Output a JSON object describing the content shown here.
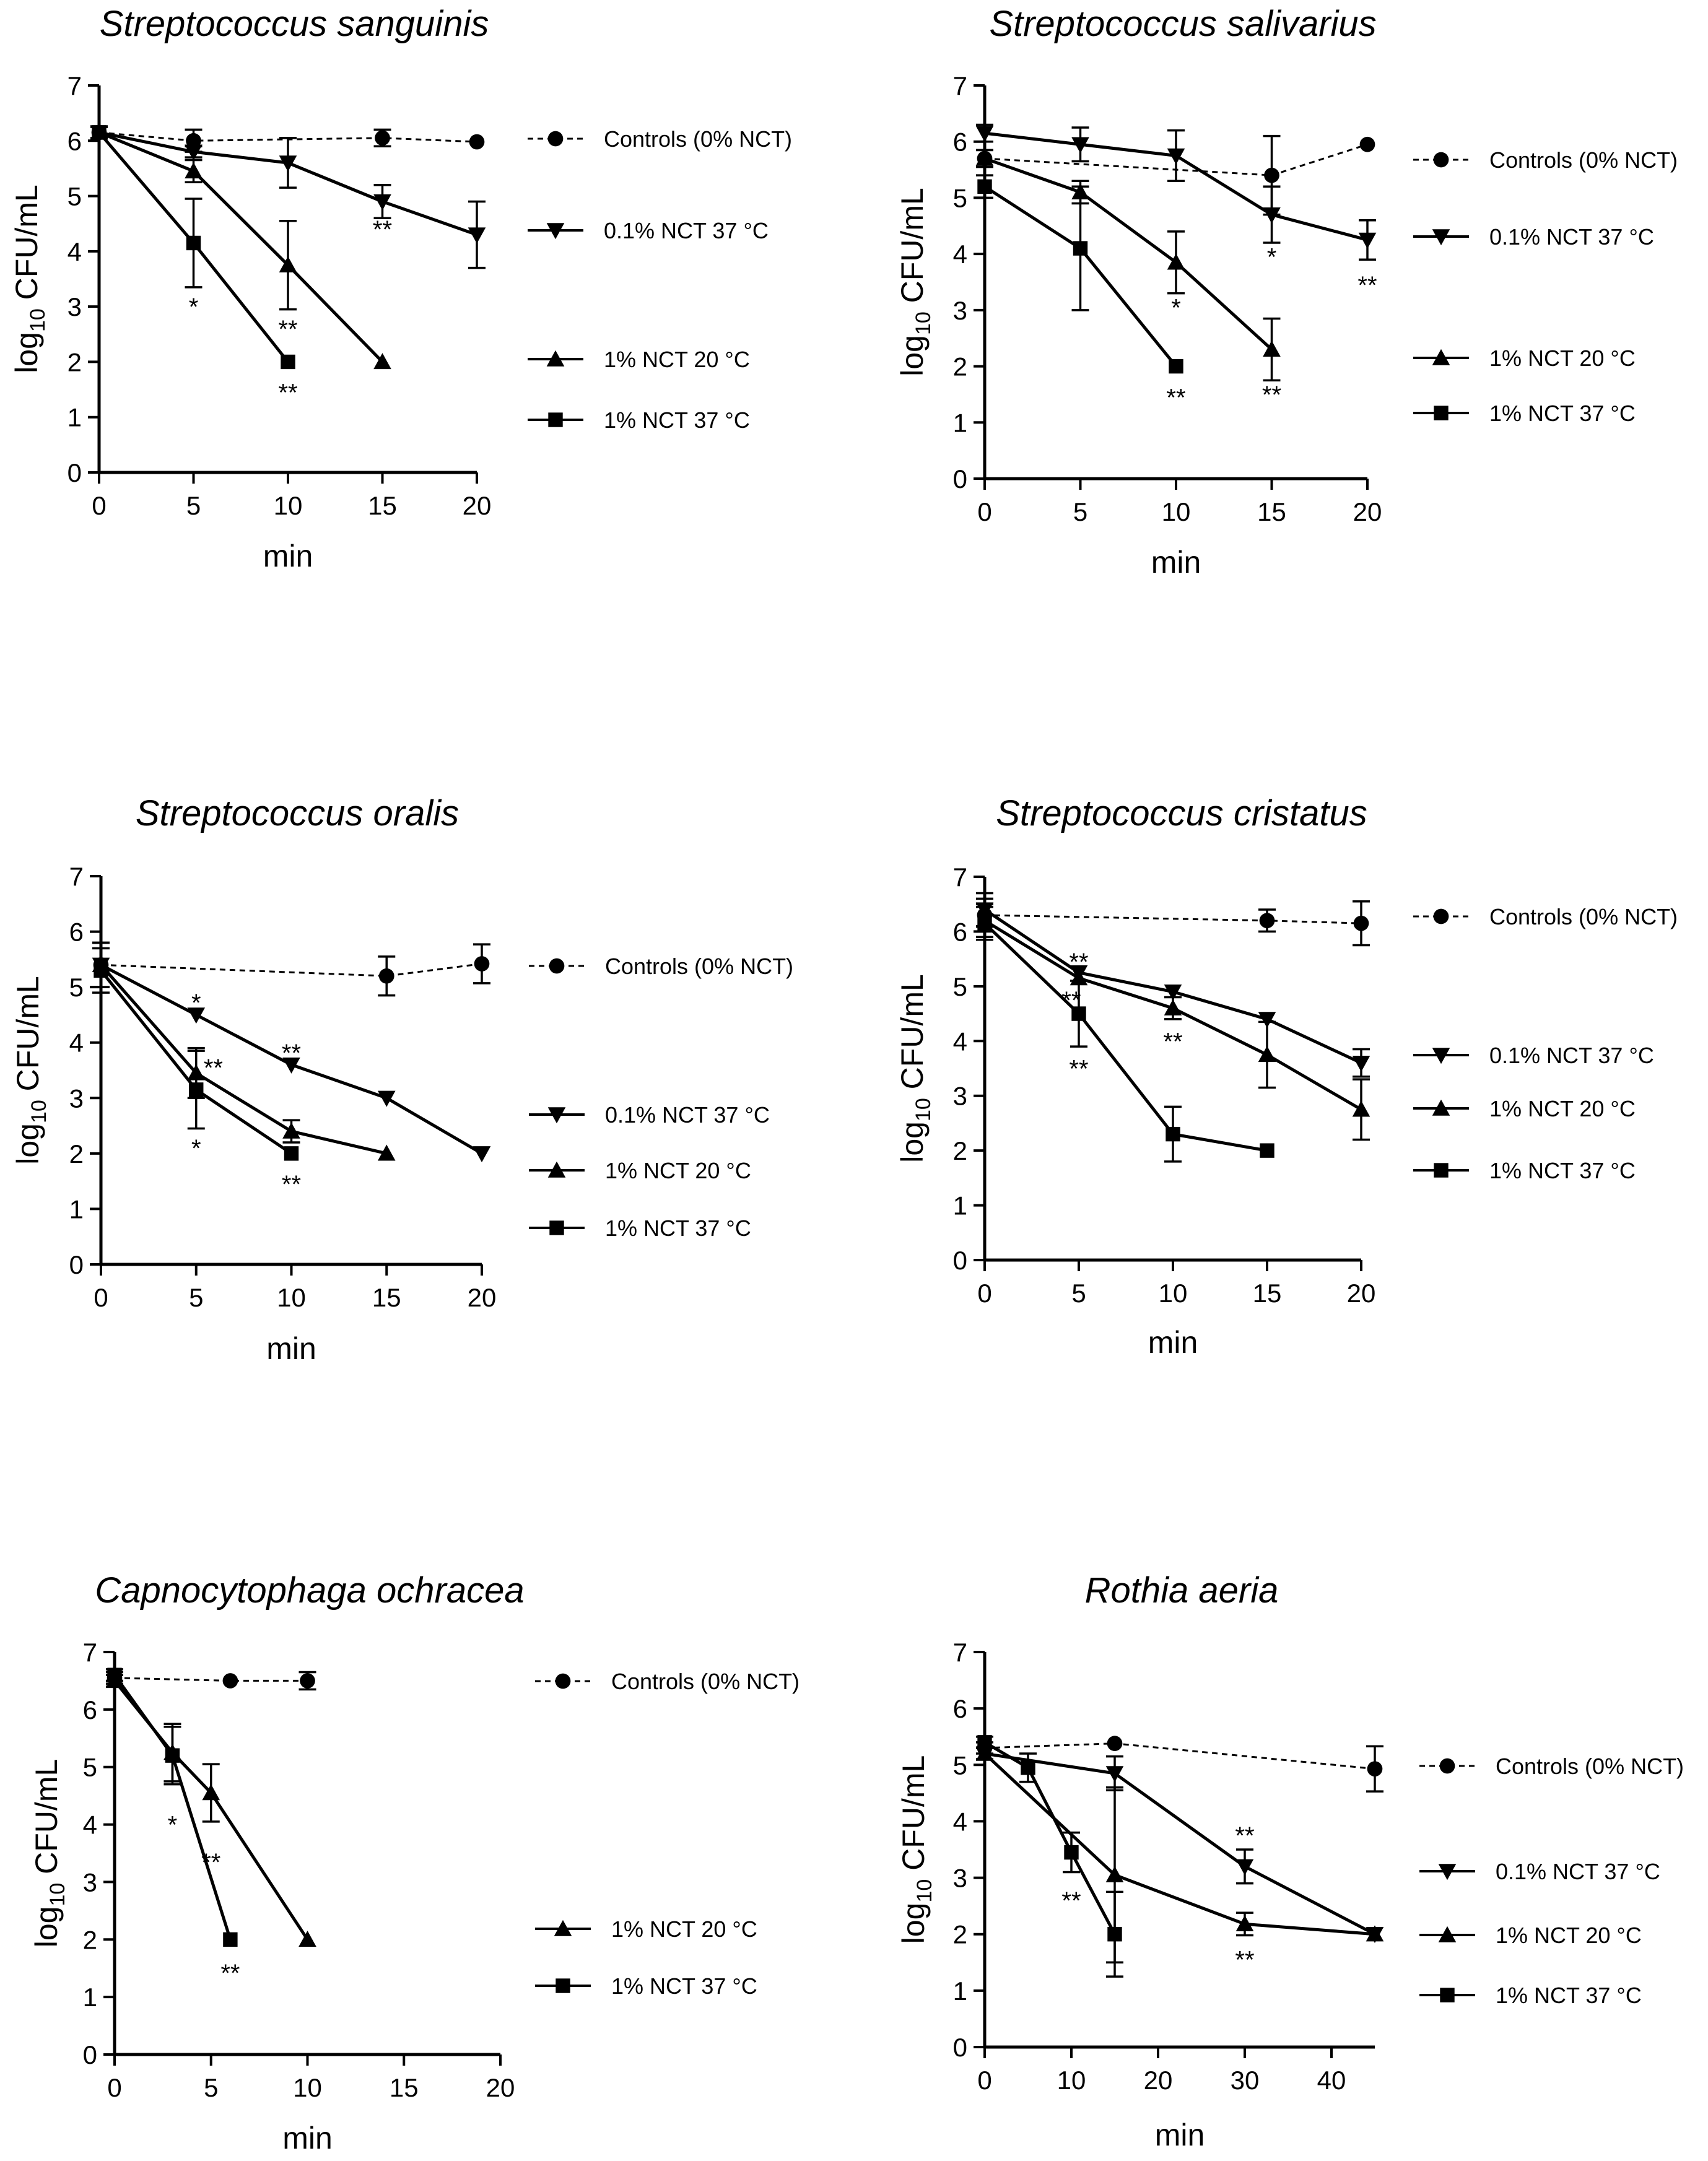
{
  "chart_data": [
    {
      "type": "line",
      "title": "Streptococcus sanguinis",
      "xlabel": "min",
      "ylabel": "log10 CFU/mL",
      "xlim": [
        0,
        20
      ],
      "ylim": [
        0,
        7
      ],
      "xticks": [
        0,
        5,
        10,
        15,
        20
      ],
      "yticks": [
        0,
        1,
        2,
        3,
        4,
        5,
        6,
        7
      ],
      "legend_position": "right",
      "series": [
        {
          "name": "Controls (0% NCT)",
          "marker": "circle",
          "line": "dashed",
          "x": [
            0,
            5,
            15,
            20
          ],
          "y": [
            6.15,
            6.0,
            6.05,
            5.98
          ],
          "err": [
            0.1,
            0.2,
            0.15,
            0
          ]
        },
        {
          "name": "0.1% NCT 37 °C",
          "marker": "triangle-down",
          "line": "solid",
          "x": [
            0,
            5,
            10,
            15,
            20
          ],
          "y": [
            6.15,
            5.8,
            5.6,
            4.9,
            4.3
          ],
          "err": [
            0.1,
            0.1,
            0.45,
            0.3,
            0.6
          ]
        },
        {
          "name": "1% NCT 20 °C",
          "marker": "triangle-up",
          "line": "solid",
          "x": [
            0,
            5,
            10,
            15
          ],
          "y": [
            6.15,
            5.45,
            3.75,
            2.0
          ],
          "err": [
            0.1,
            0.2,
            0.8,
            0
          ]
        },
        {
          "name": "1% NCT 37 °C",
          "marker": "square",
          "line": "solid",
          "x": [
            0,
            5,
            10
          ],
          "y": [
            6.15,
            4.15,
            2.0
          ],
          "err": [
            0.1,
            0.8,
            0
          ]
        }
      ],
      "annotations": [
        {
          "x": 5,
          "y": 3.0,
          "text": "*"
        },
        {
          "x": 10,
          "y": 2.6,
          "text": "**"
        },
        {
          "x": 10,
          "y": 1.45,
          "text": "**"
        },
        {
          "x": 15,
          "y": 4.4,
          "text": "**"
        }
      ]
    },
    {
      "type": "line",
      "title": "Streptococcus salivarius",
      "xlabel": "min",
      "ylabel": "log10 CFU/mL",
      "xlim": [
        0,
        20
      ],
      "ylim": [
        0,
        7
      ],
      "xticks": [
        0,
        5,
        10,
        15,
        20
      ],
      "yticks": [
        0,
        1,
        2,
        3,
        4,
        5,
        6,
        7
      ],
      "legend_position": "right",
      "series": [
        {
          "name": "Controls (0% NCT)",
          "marker": "circle",
          "line": "dashed",
          "x": [
            0,
            15,
            20
          ],
          "y": [
            5.7,
            5.4,
            5.95
          ],
          "err": [
            0.15,
            0.7,
            0
          ]
        },
        {
          "name": "0.1% NCT 37 °C",
          "marker": "triangle-down",
          "line": "solid",
          "x": [
            0,
            5,
            10,
            15,
            20
          ],
          "y": [
            6.15,
            5.95,
            5.75,
            4.7,
            4.25
          ],
          "err": [
            0.15,
            0.3,
            0.45,
            0.5,
            0.35
          ]
        },
        {
          "name": "1% NCT 20 °C",
          "marker": "triangle-up",
          "line": "solid",
          "x": [
            0,
            5,
            10,
            15
          ],
          "y": [
            5.7,
            5.1,
            3.85,
            2.3
          ],
          "err": [
            0.15,
            0.2,
            0.55,
            0.55
          ]
        },
        {
          "name": "1% NCT 37 °C",
          "marker": "square",
          "line": "solid",
          "x": [
            0,
            5,
            10
          ],
          "y": [
            5.2,
            4.1,
            2.0
          ],
          "err": [
            0.2,
            1.1,
            0
          ]
        }
      ],
      "annotations": [
        {
          "x": 10,
          "y": 3.05,
          "text": "*"
        },
        {
          "x": 15,
          "y": 3.95,
          "text": "*"
        },
        {
          "x": 20,
          "y": 3.45,
          "text": "**"
        },
        {
          "x": 10,
          "y": 1.45,
          "text": "**"
        },
        {
          "x": 15,
          "y": 1.5,
          "text": "**"
        }
      ]
    },
    {
      "type": "line",
      "title": "Streptococcus oralis",
      "xlabel": "min",
      "ylabel": "log10 CFU/mL",
      "xlim": [
        0,
        20
      ],
      "ylim": [
        0,
        7
      ],
      "xticks": [
        0,
        5,
        10,
        15,
        20
      ],
      "yticks": [
        0,
        1,
        2,
        3,
        4,
        5,
        6,
        7
      ],
      "legend_position": "right",
      "series": [
        {
          "name": "Controls (0% NCT)",
          "marker": "circle",
          "line": "dashed",
          "x": [
            0,
            15,
            20
          ],
          "y": [
            5.4,
            5.2,
            5.42
          ],
          "err": [
            0.4,
            0.35,
            0.35
          ]
        },
        {
          "name": "0.1% NCT 37 °C",
          "marker": "triangle-down",
          "line": "solid",
          "x": [
            0,
            5,
            10,
            15,
            20
          ],
          "y": [
            5.4,
            4.5,
            3.6,
            3.0,
            2.0
          ],
          "err": [
            0.4,
            0,
            0,
            0,
            0
          ]
        },
        {
          "name": "1% NCT 20 °C",
          "marker": "triangle-up",
          "line": "solid",
          "x": [
            0,
            5,
            10,
            15
          ],
          "y": [
            5.4,
            3.45,
            2.4,
            2.0
          ],
          "err": [
            0.4,
            0.45,
            0.2,
            0
          ]
        },
        {
          "name": "1% NCT 37 °C",
          "marker": "square",
          "line": "solid",
          "x": [
            0,
            5,
            10
          ],
          "y": [
            5.3,
            3.15,
            2.0
          ],
          "err": [
            0.4,
            0.7,
            0
          ]
        }
      ],
      "annotations": [
        {
          "x": 5,
          "y": 4.72,
          "text": "*"
        },
        {
          "x": 5.9,
          "y": 3.55,
          "text": "**"
        },
        {
          "x": 10,
          "y": 3.82,
          "text": "**"
        },
        {
          "x": 5,
          "y": 2.1,
          "text": "*"
        },
        {
          "x": 10,
          "y": 1.45,
          "text": "**"
        }
      ]
    },
    {
      "type": "line",
      "title": "Streptococcus cristatus",
      "xlabel": "min",
      "ylabel": "log10 CFU/mL",
      "xlim": [
        0,
        20
      ],
      "ylim": [
        0,
        7
      ],
      "xticks": [
        0,
        5,
        10,
        15,
        20
      ],
      "yticks": [
        0,
        1,
        2,
        3,
        4,
        5,
        6,
        7
      ],
      "legend_position": "right",
      "series": [
        {
          "name": "Controls (0% NCT)",
          "marker": "circle",
          "line": "dashed",
          "x": [
            0,
            15,
            20
          ],
          "y": [
            6.3,
            6.2,
            6.15
          ],
          "err": [
            0.3,
            0.2,
            0.4
          ]
        },
        {
          "name": "0.1% NCT 37 °C",
          "marker": "triangle-down",
          "line": "solid",
          "x": [
            0,
            5,
            10,
            15,
            20
          ],
          "y": [
            6.4,
            5.25,
            4.9,
            4.4,
            3.6
          ],
          "err": [
            0.3,
            0,
            0,
            0,
            0.25
          ]
        },
        {
          "name": "1% NCT 20 °C",
          "marker": "triangle-up",
          "line": "solid",
          "x": [
            0,
            5,
            10,
            15,
            20
          ],
          "y": [
            6.2,
            5.15,
            4.6,
            3.75,
            2.75
          ],
          "err": [
            0.3,
            0,
            0.2,
            0.6,
            0.55
          ]
        },
        {
          "name": "1% NCT 37 °C",
          "marker": "square",
          "line": "solid",
          "x": [
            0,
            5,
            10,
            15
          ],
          "y": [
            6.15,
            4.5,
            2.3,
            2.0
          ],
          "err": [
            0.3,
            0.6,
            0.5,
            0
          ]
        }
      ],
      "annotations": [
        {
          "x": 5,
          "y": 5.45,
          "text": "**"
        },
        {
          "x": 4.6,
          "y": 4.75,
          "text": "**"
        },
        {
          "x": 10,
          "y": 4.0,
          "text": "**"
        },
        {
          "x": 5,
          "y": 3.5,
          "text": "**"
        }
      ]
    },
    {
      "type": "line",
      "title": "Capnocytophaga ochracea",
      "xlabel": "min",
      "ylabel": "log10 CFU/mL",
      "xlim": [
        0,
        20
      ],
      "ylim": [
        0,
        7
      ],
      "xticks": [
        0,
        5,
        10,
        15,
        20
      ],
      "yticks": [
        0,
        1,
        2,
        3,
        4,
        5,
        6,
        7
      ],
      "legend_position": "right",
      "series": [
        {
          "name": "Controls (0% NCT)",
          "marker": "circle",
          "line": "dashed",
          "x": [
            0,
            6,
            10
          ],
          "y": [
            6.55,
            6.5,
            6.5
          ],
          "err": [
            0.1,
            0,
            0.15
          ]
        },
        {
          "name": "1% NCT 20 °C",
          "marker": "triangle-up",
          "line": "solid",
          "x": [
            0,
            3,
            5,
            10
          ],
          "y": [
            6.5,
            5.25,
            4.55,
            2.0
          ],
          "err": [
            0.1,
            0.5,
            0.5,
            0
          ]
        },
        {
          "name": "1% NCT 37 °C",
          "marker": "square",
          "line": "solid",
          "x": [
            0,
            3,
            6
          ],
          "y": [
            6.6,
            5.2,
            2.0
          ],
          "err": [
            0.1,
            0.5,
            0
          ]
        }
      ],
      "annotations": [
        {
          "x": 3,
          "y": 4.0,
          "text": "*"
        },
        {
          "x": 5,
          "y": 3.35,
          "text": "**"
        },
        {
          "x": 6,
          "y": 1.42,
          "text": "**"
        }
      ]
    },
    {
      "type": "line",
      "title": "Rothia aeria",
      "xlabel": "min",
      "ylabel": "log10 CFU/mL",
      "xlim": [
        0,
        45
      ],
      "ylim": [
        0,
        7
      ],
      "xticks": [
        0,
        10,
        20,
        30,
        40
      ],
      "yticks": [
        0,
        1,
        2,
        3,
        4,
        5,
        6,
        7
      ],
      "legend_position": "right",
      "series": [
        {
          "name": "Controls (0% NCT)",
          "marker": "circle",
          "line": "dashed",
          "x": [
            0,
            15,
            45
          ],
          "y": [
            5.3,
            5.38,
            4.93
          ],
          "err": [
            0.1,
            0,
            0.4
          ]
        },
        {
          "name": "0.1% NCT 37 °C",
          "marker": "triangle-down",
          "line": "solid",
          "x": [
            0,
            15,
            30,
            45
          ],
          "y": [
            5.2,
            4.85,
            3.2,
            2.0
          ],
          "err": [
            0.1,
            0.3,
            0.3,
            0
          ]
        },
        {
          "name": "1% NCT 20 °C",
          "marker": "triangle-up",
          "line": "solid",
          "x": [
            0,
            15,
            30,
            45
          ],
          "y": [
            5.2,
            3.05,
            2.18,
            2.0
          ],
          "err": [
            0.1,
            1.55,
            0.2,
            0
          ]
        },
        {
          "name": "1% NCT 37 °C",
          "marker": "square",
          "line": "solid",
          "x": [
            0,
            5,
            10,
            15
          ],
          "y": [
            5.4,
            4.95,
            3.45,
            2.0
          ],
          "err": [
            0.1,
            0.25,
            0.35,
            0.75
          ]
        }
      ],
      "annotations": [
        {
          "x": 30,
          "y": 3.75,
          "text": "**"
        },
        {
          "x": 10,
          "y": 2.6,
          "text": "**"
        },
        {
          "x": 30,
          "y": 1.55,
          "text": "**"
        }
      ]
    }
  ]
}
